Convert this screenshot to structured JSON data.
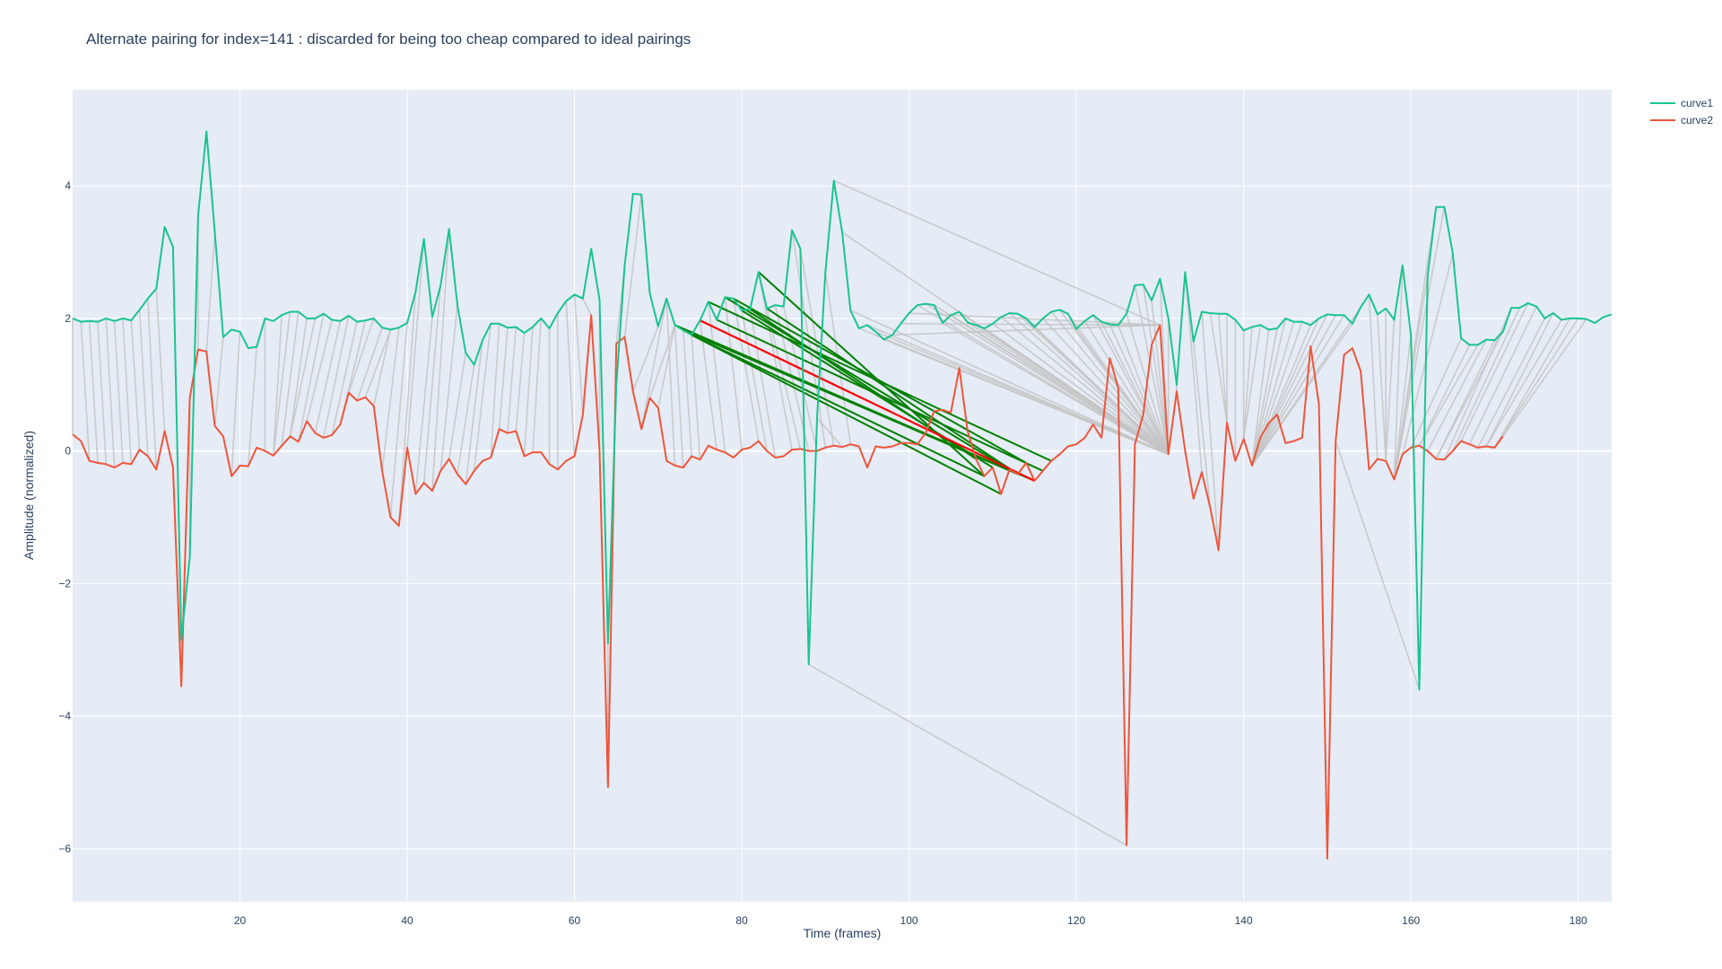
{
  "chart_data": {
    "type": "line",
    "title": "Alternate pairing for index=141 : discarded for being too cheap compared to ideal pairings",
    "xlabel": "Time (frames)",
    "ylabel": "Amplitude (normalized)",
    "xlim": [
      0,
      184
    ],
    "ylim": [
      -6.8,
      5.45
    ],
    "x_ticks": [
      20,
      40,
      60,
      80,
      100,
      120,
      140,
      160,
      180
    ],
    "y_ticks": [
      -6,
      -4,
      -2,
      0,
      2,
      4
    ],
    "y_tick_labels": [
      "−6",
      "−4",
      "−2",
      "0",
      "2",
      "4"
    ],
    "grid": true,
    "plot_bg": "#e5ecf6",
    "grid_color": "#ffffff",
    "legend_position": "top-right",
    "series": [
      {
        "name": "curve1",
        "color": "#1ac48f",
        "x0": 0,
        "values": [
          2.0,
          1.95,
          1.96,
          1.95,
          2.0,
          1.96,
          2.0,
          1.97,
          2.13,
          2.3,
          2.45,
          3.38,
          3.08,
          -2.85,
          -1.6,
          3.55,
          4.82,
          3.3,
          1.72,
          1.83,
          1.8,
          1.55,
          1.57,
          2.0,
          1.96,
          2.05,
          2.1,
          2.1,
          2.0,
          2.0,
          2.07,
          1.98,
          1.96,
          2.04,
          1.95,
          1.97,
          2.0,
          1.86,
          1.83,
          1.86,
          1.93,
          2.4,
          3.2,
          2.02,
          2.5,
          3.35,
          2.2,
          1.48,
          1.3,
          1.67,
          1.92,
          1.92,
          1.86,
          1.87,
          1.78,
          1.87,
          2.0,
          1.85,
          2.08,
          2.26,
          2.36,
          2.3,
          3.05,
          2.28,
          -2.9,
          1.0,
          2.8,
          3.88,
          3.87,
          2.38,
          1.88,
          2.3,
          1.9,
          1.82,
          1.75,
          1.97,
          2.25,
          1.98,
          2.32,
          2.3,
          2.12,
          2.14,
          2.7,
          2.15,
          2.2,
          2.18,
          3.33,
          3.05,
          -3.22,
          0.5,
          2.7,
          4.08,
          3.3,
          2.12,
          1.85,
          1.9,
          1.8,
          1.68,
          1.75,
          1.92,
          2.08,
          2.2,
          2.22,
          2.2,
          1.93,
          2.05,
          2.1,
          1.94,
          1.9,
          1.85,
          1.92,
          2.02,
          2.08,
          2.07,
          2.0,
          1.87,
          2.0,
          2.1,
          2.13,
          2.07,
          1.84,
          1.96,
          2.05,
          1.95,
          1.91,
          1.9,
          2.07,
          2.5,
          2.51,
          2.27,
          2.6,
          2.0,
          1.0,
          2.7,
          1.65,
          2.1,
          2.08,
          2.07,
          2.07,
          1.98,
          1.82,
          1.87,
          1.9,
          1.83,
          1.85,
          2.0,
          1.95,
          1.95,
          1.9,
          2.0,
          2.06,
          2.05,
          2.05,
          1.92,
          2.17,
          2.36,
          2.06,
          2.15,
          1.98,
          2.8,
          1.75,
          -3.6,
          2.65,
          3.68,
          3.68,
          2.98,
          1.7,
          1.6,
          1.6,
          1.68,
          1.67,
          1.8,
          2.16,
          2.16,
          2.23,
          2.18,
          2.0,
          2.08,
          1.98,
          2.0,
          2.0,
          1.99,
          1.93,
          2.02,
          2.06
        ]
      },
      {
        "name": "curve2",
        "color": "#ef553b",
        "x0": 0,
        "values": [
          0.25,
          0.15,
          -0.15,
          -0.18,
          -0.2,
          -0.25,
          -0.18,
          -0.2,
          0.02,
          -0.08,
          -0.28,
          0.3,
          -0.25,
          -3.55,
          0.8,
          1.53,
          1.5,
          0.38,
          0.22,
          -0.38,
          -0.22,
          -0.23,
          0.05,
          0.0,
          -0.07,
          0.08,
          0.22,
          0.14,
          0.45,
          0.27,
          0.2,
          0.24,
          0.4,
          0.88,
          0.76,
          0.81,
          0.68,
          -0.3,
          -1.0,
          -1.13,
          0.05,
          -0.65,
          -0.48,
          -0.6,
          -0.3,
          -0.12,
          -0.35,
          -0.5,
          -0.3,
          -0.15,
          -0.1,
          0.33,
          0.27,
          0.3,
          -0.08,
          -0.02,
          -0.02,
          -0.2,
          -0.28,
          -0.15,
          -0.08,
          0.55,
          2.05,
          0.0,
          -5.07,
          1.62,
          1.72,
          0.9,
          0.33,
          0.8,
          0.65,
          -0.15,
          -0.22,
          -0.25,
          -0.08,
          -0.13,
          0.08,
          0.02,
          -0.02,
          -0.1,
          0.02,
          0.05,
          0.15,
          0.0,
          -0.1,
          -0.08,
          0.02,
          0.03,
          0.0,
          0.0,
          0.05,
          0.08,
          0.06,
          0.1,
          0.07,
          -0.25,
          0.07,
          0.05,
          0.07,
          0.12,
          0.12,
          0.1,
          0.28,
          0.6,
          0.62,
          0.58,
          1.25,
          0.3,
          -0.12,
          -0.38,
          -0.25,
          -0.65,
          -0.28,
          -0.35,
          -0.18,
          -0.45,
          -0.3,
          -0.15,
          -0.05,
          0.07,
          0.1,
          0.2,
          0.4,
          0.2,
          1.4,
          0.95,
          -5.95,
          0.1,
          0.55,
          1.6,
          1.9,
          -0.05,
          0.9,
          0.0,
          -0.72,
          -0.32,
          -0.85,
          -1.5,
          0.43,
          -0.15,
          0.18,
          -0.22,
          0.2,
          0.42,
          0.55,
          0.12,
          0.15,
          0.2,
          1.58,
          0.7,
          -6.15,
          0.15,
          1.45,
          1.55,
          1.2,
          -0.28,
          -0.12,
          -0.15,
          -0.43,
          -0.05,
          0.05,
          0.08,
          0.0,
          -0.12,
          -0.13,
          0.0,
          0.15,
          0.1,
          0.05,
          0.07,
          0.05,
          0.22
        ]
      }
    ],
    "pairings_grey": {
      "color": "#c4c4c4",
      "links": [
        [
          0,
          0
        ],
        [
          1,
          2
        ],
        [
          2,
          3
        ],
        [
          3,
          4
        ],
        [
          4,
          5
        ],
        [
          5,
          6
        ],
        [
          6,
          7
        ],
        [
          7,
          8
        ],
        [
          8,
          9
        ],
        [
          9,
          10
        ],
        [
          10,
          11
        ],
        [
          13,
          13
        ],
        [
          14,
          14
        ],
        [
          15,
          15
        ],
        [
          17,
          16
        ],
        [
          18,
          17
        ],
        [
          20,
          19
        ],
        [
          22,
          21
        ],
        [
          23,
          23
        ],
        [
          25,
          24
        ],
        [
          26,
          24
        ],
        [
          27,
          25
        ],
        [
          28,
          26
        ],
        [
          29,
          26
        ],
        [
          30,
          27
        ],
        [
          31,
          28
        ],
        [
          32,
          29
        ],
        [
          33,
          30
        ],
        [
          34,
          31
        ],
        [
          35,
          32
        ],
        [
          36,
          33
        ],
        [
          37,
          34
        ],
        [
          38,
          35
        ],
        [
          38,
          36
        ],
        [
          39,
          37
        ],
        [
          40,
          38
        ],
        [
          41,
          39
        ],
        [
          42,
          40
        ],
        [
          43,
          41
        ],
        [
          44,
          42
        ],
        [
          45,
          43
        ],
        [
          46,
          44
        ],
        [
          47,
          45
        ],
        [
          48,
          46
        ],
        [
          49,
          47
        ],
        [
          50,
          48
        ],
        [
          51,
          50
        ],
        [
          52,
          51
        ],
        [
          53,
          52
        ],
        [
          54,
          53
        ],
        [
          55,
          54
        ],
        [
          56,
          55
        ],
        [
          57,
          57
        ],
        [
          58,
          58
        ],
        [
          59,
          60
        ],
        [
          60,
          61
        ],
        [
          61,
          62
        ],
        [
          63,
          63
        ],
        [
          64,
          64
        ],
        [
          66,
          65
        ],
        [
          68,
          66
        ],
        [
          70,
          67
        ],
        [
          71,
          68
        ],
        [
          72,
          69
        ],
        [
          72,
          70
        ],
        [
          71,
          72
        ],
        [
          72,
          73
        ],
        [
          73,
          74
        ],
        [
          74,
          75
        ],
        [
          75,
          77
        ],
        [
          76,
          78
        ],
        [
          78,
          80
        ],
        [
          79,
          82
        ],
        [
          80,
          83
        ],
        [
          81,
          84
        ],
        [
          82,
          86
        ],
        [
          83,
          87
        ],
        [
          84,
          88
        ],
        [
          85,
          89
        ],
        [
          86,
          90
        ],
        [
          87,
          91
        ],
        [
          88,
          126
        ],
        [
          89,
          92
        ],
        [
          90,
          93
        ],
        [
          91,
          130
        ],
        [
          92,
          131
        ],
        [
          93,
          131
        ],
        [
          94,
          131
        ],
        [
          95,
          131
        ],
        [
          96,
          131
        ],
        [
          97,
          131
        ],
        [
          98,
          130
        ],
        [
          99,
          130
        ],
        [
          100,
          130
        ],
        [
          101,
          131
        ],
        [
          102,
          131
        ],
        [
          103,
          131
        ],
        [
          104,
          131
        ],
        [
          105,
          131
        ],
        [
          106,
          131
        ],
        [
          107,
          131
        ],
        [
          108,
          131
        ],
        [
          109,
          131
        ],
        [
          110,
          131
        ],
        [
          111,
          131
        ],
        [
          112,
          131
        ],
        [
          113,
          131
        ],
        [
          114,
          131
        ],
        [
          115,
          131
        ],
        [
          116,
          131
        ],
        [
          117,
          131
        ],
        [
          118,
          131
        ],
        [
          119,
          131
        ],
        [
          120,
          131
        ],
        [
          121,
          131
        ],
        [
          122,
          131
        ],
        [
          123,
          131
        ],
        [
          124,
          131
        ],
        [
          125,
          131
        ],
        [
          126,
          131
        ],
        [
          127,
          131
        ],
        [
          128,
          131
        ],
        [
          129,
          131
        ],
        [
          130,
          131
        ],
        [
          131,
          131
        ],
        [
          132,
          132
        ],
        [
          133,
          135
        ],
        [
          134,
          136
        ],
        [
          135,
          137
        ],
        [
          136,
          138
        ],
        [
          137,
          138
        ],
        [
          138,
          138
        ],
        [
          139,
          139
        ],
        [
          140,
          140
        ],
        [
          141,
          140
        ],
        [
          142,
          140
        ],
        [
          143,
          141
        ],
        [
          144,
          141
        ],
        [
          145,
          141
        ],
        [
          146,
          141
        ],
        [
          147,
          141
        ],
        [
          148,
          141
        ],
        [
          149,
          141
        ],
        [
          150,
          141
        ],
        [
          151,
          141
        ],
        [
          152,
          141
        ],
        [
          153,
          141
        ],
        [
          154,
          141
        ],
        [
          155,
          156
        ],
        [
          156,
          157
        ],
        [
          157,
          157
        ],
        [
          158,
          157
        ],
        [
          159,
          158
        ],
        [
          160,
          158
        ],
        [
          161,
          151
        ],
        [
          162,
          158
        ],
        [
          163,
          158
        ],
        [
          164,
          158
        ],
        [
          165,
          159
        ],
        [
          166,
          160
        ],
        [
          167,
          161
        ],
        [
          168,
          161
        ],
        [
          169,
          162
        ],
        [
          170,
          163
        ],
        [
          171,
          163
        ],
        [
          172,
          164
        ],
        [
          173,
          165
        ],
        [
          174,
          166
        ],
        [
          175,
          167
        ],
        [
          176,
          168
        ],
        [
          177,
          169
        ],
        [
          178,
          169
        ],
        [
          179,
          170
        ],
        [
          180,
          170
        ],
        [
          181,
          171
        ],
        [
          182,
          172
        ],
        [
          183,
          172
        ]
      ]
    },
    "pairings_green": {
      "color": "#008000",
      "links": [
        [
          72,
          115
        ],
        [
          73,
          113
        ],
        [
          74,
          109
        ],
        [
          74,
          111
        ],
        [
          76,
          117
        ],
        [
          77,
          116
        ],
        [
          78,
          112
        ],
        [
          79,
          114
        ],
        [
          80,
          110
        ],
        [
          81,
          108
        ],
        [
          82,
          109
        ],
        [
          83,
          113
        ]
      ]
    },
    "pairings_red": {
      "color": "#ff0000",
      "links": [
        [
          75,
          115
        ]
      ]
    }
  }
}
